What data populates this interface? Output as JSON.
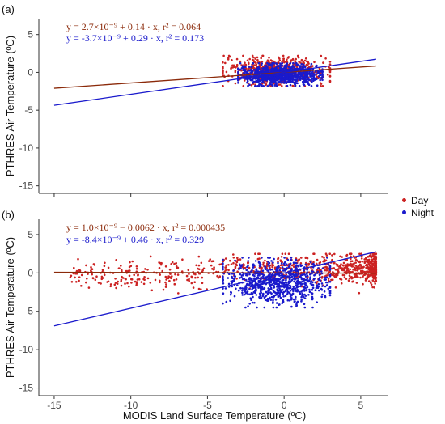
{
  "figure": {
    "ylabel": "PTHRES Air Temperature (ºC)",
    "xlabel": "MODIS Land Surface Temperature (ºC)",
    "legend": {
      "day": "Day",
      "night": "Night"
    },
    "colors": {
      "day": "#cc2222",
      "night": "#1a1acc",
      "day_line": "#8b2a0a",
      "night_line": "#1a1acc"
    }
  },
  "chart_data": [
    {
      "type": "scatter",
      "panel_label": "(a)",
      "xlim": [
        -16,
        6.8
      ],
      "ylim": [
        -16,
        7
      ],
      "xticks": [
        -15,
        -10,
        -5,
        0,
        5
      ],
      "xtick_labels": [],
      "yticks": [
        5,
        0,
        -5,
        -10,
        -15
      ],
      "ytick_labels": [
        "5",
        "0",
        "-5",
        "-10",
        "-15"
      ],
      "series": [
        {
          "name": "Day",
          "fit": {
            "intercept": 0.0,
            "slope": 0.14
          },
          "equation": "y = 2.7×10⁻⁹ + 0.14 · x,   r² = 0.064",
          "cluster": {
            "x": [
              -4,
              3
            ],
            "y": [
              -1.8,
              2.2
            ]
          }
        },
        {
          "name": "Night",
          "fit": {
            "intercept": 0.0,
            "slope": 0.29
          },
          "equation": "y = -3.7×10⁻⁹ + 0.29 · x,   r² = 0.173",
          "cluster": {
            "x": [
              -3,
              2.5
            ],
            "y": [
              -1.8,
              1.2
            ]
          }
        }
      ],
      "grid": false
    },
    {
      "type": "scatter",
      "panel_label": "(b)",
      "xlim": [
        -16,
        6.8
      ],
      "ylim": [
        -16,
        7
      ],
      "xticks": [
        -15,
        -10,
        -5,
        0,
        5
      ],
      "xtick_labels": [
        "-15",
        "-10",
        "-5",
        "0",
        "5"
      ],
      "yticks": [
        5,
        0,
        -5,
        -10,
        -15
      ],
      "ytick_labels": [
        "5",
        "0",
        "-5",
        "-10",
        "-15"
      ],
      "series": [
        {
          "name": "Day",
          "fit": {
            "intercept": 0.0,
            "slope": -0.0062
          },
          "equation": "y = 1.0×10⁻⁹ − 0.0062 · x,   r² = 0.000435",
          "cluster": {
            "x": [
              -14,
              6
            ],
            "y": [
              -4,
              2.5
            ]
          }
        },
        {
          "name": "Night",
          "fit": {
            "intercept": 0.0,
            "slope": 0.46
          },
          "equation": "y = -8.4×10⁻⁹ + 0.46 · x,   r² = 0.329",
          "cluster": {
            "x": [
              -4,
              3
            ],
            "y": [
              -4.5,
              2
            ]
          }
        }
      ],
      "grid": false
    }
  ]
}
